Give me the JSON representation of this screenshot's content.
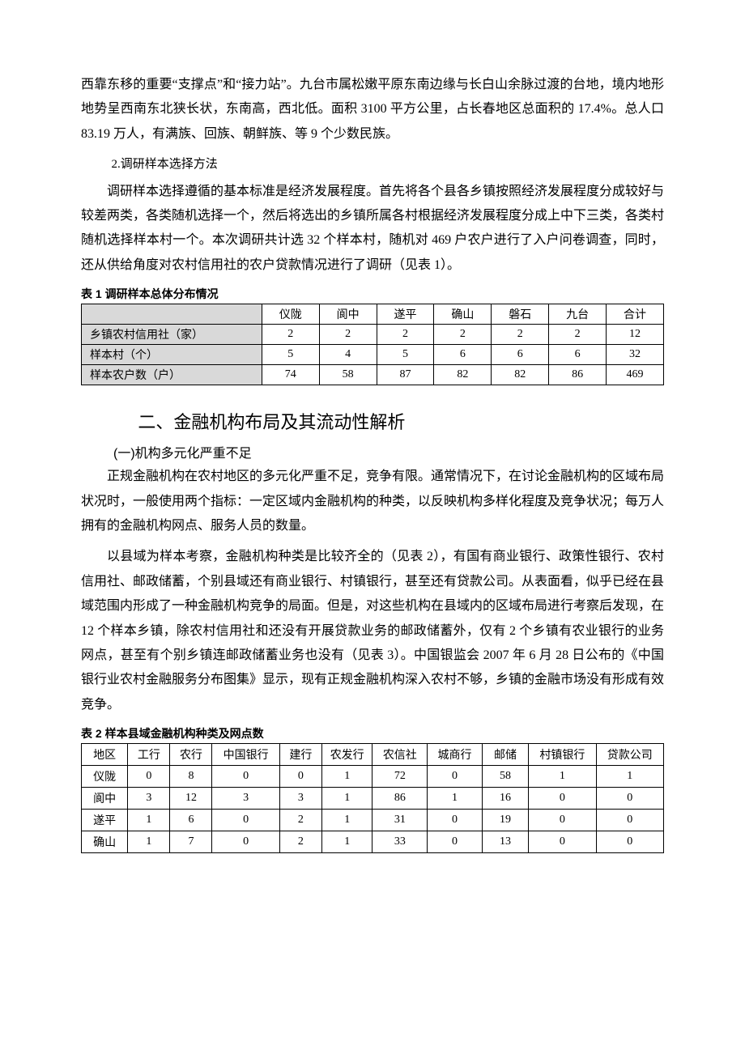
{
  "para1": "西靠东移的重要“支撑点”和“接力站”。九台市属松嫩平原东南边缘与长白山余脉过渡的台地，境内地形地势呈西南东北狭长状，东南高，西北低。面积 3100 平方公里，占长春地区总面积的 17.4%。总人口 83.19 万人，有满族、回族、朝鲜族、等 9 个少数民族。",
  "subhead1": "2.调研样本选择方法",
  "para2": "调研样本选择遵循的基本标准是经济发展程度。首先将各个县各乡镇按照经济发展程度分成较好与较差两类，各类随机选择一个，然后将选出的乡镇所属各村根据经济发展程度分成上中下三类，各类村随机选择样本村一个。本次调研共计选 32 个样本村，随机对 469 户农户进行了入户问卷调查，同时，还从供给角度对农村信用社的农户贷款情况进行了调研（见表 1）。",
  "table1": {
    "caption": "表 1  调研样本总体分布情况",
    "columns": [
      "仪陇",
      "阆中",
      "遂平",
      "确山",
      "磐石",
      "九台",
      "合计"
    ],
    "rows": [
      {
        "label": "乡镇农村信用社（家）",
        "cells": [
          "2",
          "2",
          "2",
          "2",
          "2",
          "2",
          "12"
        ]
      },
      {
        "label": "样本村（个）",
        "cells": [
          "5",
          "4",
          "5",
          "6",
          "6",
          "6",
          "32"
        ]
      },
      {
        "label": "样本农户数（户）",
        "cells": [
          "74",
          "58",
          "87",
          "82",
          "82",
          "86",
          "469"
        ]
      }
    ],
    "col_widths": [
      "220px",
      "70px",
      "70px",
      "70px",
      "70px",
      "70px",
      "70px",
      "70px"
    ]
  },
  "h2": "二、金融机构布局及其流动性解析",
  "sub2": "(一)机构多元化严重不足",
  "para3": "正规金融机构在农村地区的多元化严重不足，竞争有限。通常情况下，在讨论金融机构的区域布局状况时，一般使用两个指标：一定区域内金融机构的种类，以反映机构多样化程度及竞争状况；每万人拥有的金融机构网点、服务人员的数量。",
  "para4": "以县域为样本考察，金融机构种类是比较齐全的（见表 2），有国有商业银行、政策性银行、农村信用社、邮政储蓄，个别县域还有商业银行、村镇银行，甚至还有贷款公司。从表面看，似乎已经在县域范围内形成了一种金融机构竞争的局面。但是，对这些机构在县域内的区域布局进行考察后发现，在 12 个样本乡镇，除农村信用社和还没有开展贷款业务的邮政储蓄外，仅有 2 个乡镇有农业银行的业务网点，甚至有个别乡镇连邮政储蓄业务也没有（见表 3）。中国银监会 2007 年 6 月 28 日公布的《中国银行业农村金融服务分布图集》显示，现有正规金融机构深入农村不够，乡镇的金融市场没有形成有效竞争。",
  "table2": {
    "caption": "表 2  样本县域金融机构种类及网点数",
    "columns": [
      "地区",
      "工行",
      "农行",
      "中国银行",
      "建行",
      "农发行",
      "农信社",
      "城商行",
      "邮储",
      "村镇银行",
      "贷款公司"
    ],
    "rows": [
      [
        "仪陇",
        "0",
        "8",
        "0",
        "0",
        "1",
        "72",
        "0",
        "58",
        "1",
        "1"
      ],
      [
        "阆中",
        "3",
        "12",
        "3",
        "3",
        "1",
        "86",
        "1",
        "16",
        "0",
        "0"
      ],
      [
        "遂平",
        "1",
        "6",
        "0",
        "2",
        "1",
        "31",
        "0",
        "19",
        "0",
        "0"
      ],
      [
        "确山",
        "1",
        "7",
        "0",
        "2",
        "1",
        "33",
        "0",
        "13",
        "0",
        "0"
      ]
    ],
    "col_widths": [
      "55px",
      "50px",
      "50px",
      "80px",
      "50px",
      "60px",
      "65px",
      "65px",
      "55px",
      "80px",
      "80px"
    ]
  }
}
